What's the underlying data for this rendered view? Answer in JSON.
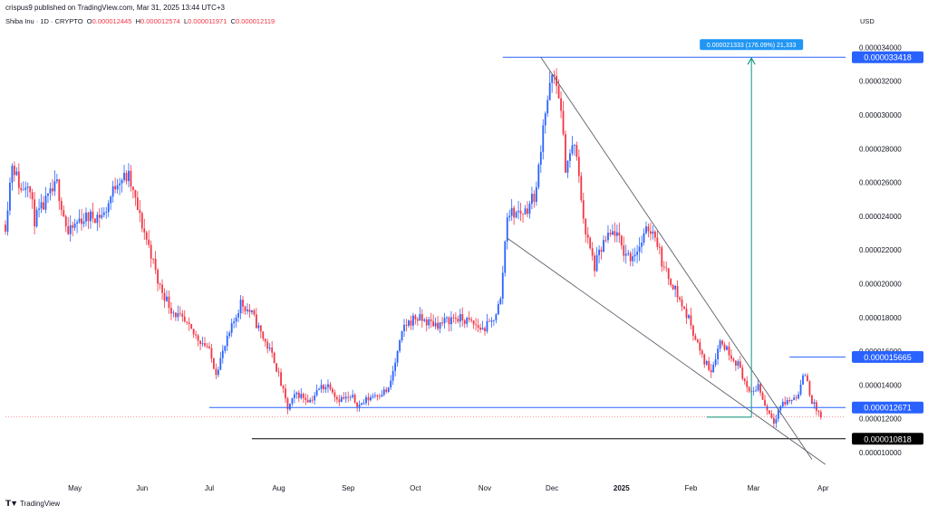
{
  "header": {
    "published": "crispus9 published on TradingView.com, Mar 31, 2025 13:44 UTC+3",
    "symbol": "Shiba Inu · 1D · CRYPTO",
    "open_label": "O",
    "open": "0.000012445",
    "high_label": "H",
    "high": "0.000012574",
    "low_label": "L",
    "low": "0.000011971",
    "close_label": "C",
    "close": "0.000012119",
    "currency": "USD"
  },
  "footer": {
    "brand": "TradingView",
    "logo_icon": "tradingview-logo-icon"
  },
  "colors": {
    "up": "#2962ff",
    "down": "#f23645",
    "blue_line": "#2962ff",
    "green_arrow": "#089981",
    "trend_line": "#787b86",
    "black_line": "#000000"
  },
  "chart_data": {
    "type": "candlestick",
    "ylim": [
      8.5e-06,
      3.52e-05
    ],
    "y_ticks": [
      "0.000010000",
      "0.000012000",
      "0.000014000",
      "0.000016000",
      "0.000018000",
      "0.000020000",
      "0.000022000",
      "0.000024000",
      "0.000026000",
      "0.000028000",
      "0.000030000",
      "0.000032000",
      "0.000034000"
    ],
    "x_ticks": [
      "May",
      "Jun",
      "Jul",
      "Aug",
      "Sep",
      "Oct",
      "Nov",
      "Dec",
      "2025",
      "Feb",
      "Mar",
      "Apr"
    ],
    "price_labels": [
      {
        "text": "0.000033418",
        "value": 3.3418e-05,
        "style": "blue"
      },
      {
        "text": "0.000015665",
        "value": 1.5665e-05,
        "style": "blue"
      },
      {
        "text": "0.000012671",
        "value": 1.2671e-05,
        "style": "blue"
      },
      {
        "text": "0.000010818",
        "value": 1.0818e-05,
        "style": "black"
      }
    ],
    "horizontal_levels": [
      {
        "value": 3.3418e-05,
        "from": "2024-11-09",
        "to": "2025-03-31",
        "color": "blue"
      },
      {
        "value": 1.5665e-05,
        "from": "2025-03-17",
        "to": "2025-03-31",
        "color": "blue"
      },
      {
        "value": 1.2671e-05,
        "from": "2024-07-01",
        "to": "2025-03-31",
        "color": "blue"
      },
      {
        "value": 1.0818e-05,
        "from": "2024-07-20",
        "to": "2025-03-31",
        "color": "black"
      },
      {
        "value": 1.2119e-05,
        "from": "2024-04-01",
        "to": "2025-03-31",
        "color": "red-dotted"
      }
    ],
    "trendlines": [
      {
        "from": {
          "date": "2024-11-26",
          "value": 3.3418e-05
        },
        "to": {
          "date": "2025-03-27",
          "value": 9.6e-06
        }
      },
      {
        "from": {
          "date": "2024-11-11",
          "value": 2.27e-05
        },
        "to": {
          "date": "2025-04-02",
          "value": 9.3e-06
        }
      }
    ],
    "measure": {
      "label": "0.000021333 (176.09%) 21,333",
      "date": "2025-02-28",
      "from_value": 1.21e-05,
      "to_value": 3.3418e-05,
      "base_from": "2025-02-08"
    },
    "ohlc_anchors": [
      [
        "2024-04-01",
        2.35e-05
      ],
      [
        "2024-04-04",
        2.72e-05
      ],
      [
        "2024-04-08",
        2.55e-05
      ],
      [
        "2024-04-11",
        2.62e-05
      ],
      [
        "2024-04-14",
        2.38e-05
      ],
      [
        "2024-04-18",
        2.46e-05
      ],
      [
        "2024-04-24",
        2.59e-05
      ],
      [
        "2024-04-29",
        2.29e-05
      ],
      [
        "2024-05-04",
        2.38e-05
      ],
      [
        "2024-05-10",
        2.4e-05
      ],
      [
        "2024-05-15",
        2.41e-05
      ],
      [
        "2024-05-21",
        2.62e-05
      ],
      [
        "2024-05-26",
        2.63e-05
      ],
      [
        "2024-05-31",
        2.39e-05
      ],
      [
        "2024-06-05",
        2.18e-05
      ],
      [
        "2024-06-08",
        2.01e-05
      ],
      [
        "2024-06-14",
        1.85e-05
      ],
      [
        "2024-06-19",
        1.78e-05
      ],
      [
        "2024-06-24",
        1.7e-05
      ],
      [
        "2024-06-30",
        1.63e-05
      ],
      [
        "2024-07-04",
        1.48e-05
      ],
      [
        "2024-07-10",
        1.7e-05
      ],
      [
        "2024-07-15",
        1.89e-05
      ],
      [
        "2024-07-20",
        1.82e-05
      ],
      [
        "2024-07-25",
        1.68e-05
      ],
      [
        "2024-07-30",
        1.55e-05
      ],
      [
        "2024-08-05",
        1.26e-05
      ],
      [
        "2024-08-09",
        1.35e-05
      ],
      [
        "2024-08-15",
        1.31e-05
      ],
      [
        "2024-08-20",
        1.39e-05
      ],
      [
        "2024-08-24",
        1.4e-05
      ],
      [
        "2024-08-27",
        1.32e-05
      ],
      [
        "2024-09-03",
        1.32e-05
      ],
      [
        "2024-09-06",
        1.28e-05
      ],
      [
        "2024-09-12",
        1.34e-05
      ],
      [
        "2024-09-19",
        1.37e-05
      ],
      [
        "2024-09-26",
        1.75e-05
      ],
      [
        "2024-10-01",
        1.8e-05
      ],
      [
        "2024-10-07",
        1.77e-05
      ],
      [
        "2024-10-12",
        1.76e-05
      ],
      [
        "2024-10-18",
        1.8e-05
      ],
      [
        "2024-10-24",
        1.78e-05
      ],
      [
        "2024-10-31",
        1.73e-05
      ],
      [
        "2024-11-04",
        1.77e-05
      ],
      [
        "2024-11-08",
        1.9e-05
      ],
      [
        "2024-11-11",
        2.42e-05
      ],
      [
        "2024-11-15",
        2.42e-05
      ],
      [
        "2024-11-19",
        2.43e-05
      ],
      [
        "2024-11-24",
        2.55e-05
      ],
      [
        "2024-11-27",
        2.96e-05
      ],
      [
        "2024-12-01",
        3.22e-05
      ],
      [
        "2024-12-04",
        3.14e-05
      ],
      [
        "2024-12-07",
        2.7e-05
      ],
      [
        "2024-12-11",
        2.83e-05
      ],
      [
        "2024-12-16",
        2.3e-05
      ],
      [
        "2024-12-20",
        2.1e-05
      ],
      [
        "2024-12-24",
        2.24e-05
      ],
      [
        "2024-12-29",
        2.31e-05
      ],
      [
        "2025-01-02",
        2.19e-05
      ],
      [
        "2025-01-05",
        2.16e-05
      ],
      [
        "2025-01-09",
        2.22e-05
      ],
      [
        "2025-01-13",
        2.33e-05
      ],
      [
        "2025-01-16",
        2.3e-05
      ],
      [
        "2025-01-20",
        2.08e-05
      ],
      [
        "2025-01-24",
        2e-05
      ],
      [
        "2025-01-27",
        1.9e-05
      ],
      [
        "2025-02-01",
        1.76e-05
      ],
      [
        "2025-02-06",
        1.56e-05
      ],
      [
        "2025-02-10",
        1.49e-05
      ],
      [
        "2025-02-14",
        1.66e-05
      ],
      [
        "2025-02-19",
        1.58e-05
      ],
      [
        "2025-02-23",
        1.5e-05
      ],
      [
        "2025-02-27",
        1.34e-05
      ],
      [
        "2025-03-03",
        1.4e-05
      ],
      [
        "2025-03-06",
        1.28e-05
      ],
      [
        "2025-03-10",
        1.19e-05
      ],
      [
        "2025-03-13",
        1.28e-05
      ],
      [
        "2025-03-17",
        1.31e-05
      ],
      [
        "2025-03-20",
        1.33e-05
      ],
      [
        "2025-03-24",
        1.47e-05
      ],
      [
        "2025-03-27",
        1.3e-05
      ],
      [
        "2025-03-31",
        1.21e-05
      ]
    ]
  }
}
